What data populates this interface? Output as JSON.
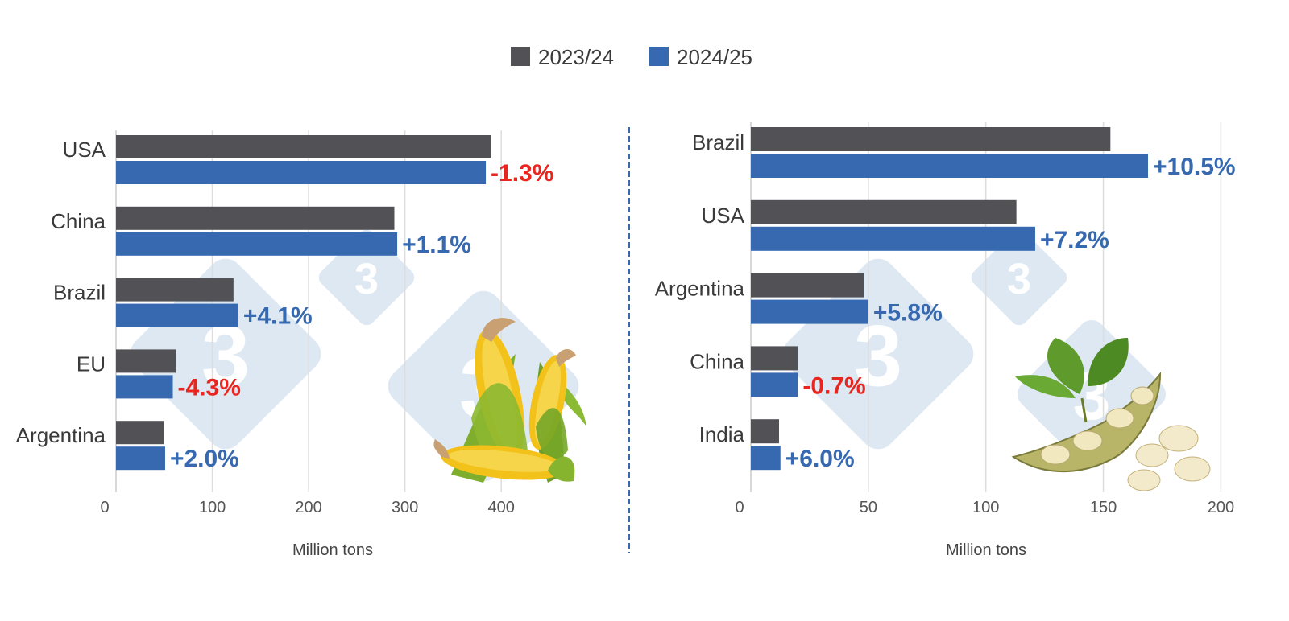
{
  "legend": {
    "items": [
      {
        "label": "2023/24",
        "color": "#525256"
      },
      {
        "label": "2024/25",
        "color": "#3669b0"
      }
    ]
  },
  "colors": {
    "series_2023_24": "#525256",
    "series_2024_25": "#3669b0",
    "positive_change": "#3669b0",
    "negative_change": "#e8261f",
    "gridline": "#dddddd",
    "divider": "#3669b0",
    "watermark": "#dde8f2"
  },
  "decorations": {
    "left_illustration": "corn-cobs-illustration",
    "right_illustration": "soybean-pods-illustration",
    "watermark_text": "3"
  },
  "chart_data": [
    {
      "type": "bar",
      "orientation": "horizontal",
      "categories": [
        "USA",
        "China",
        "Brazil",
        "EU",
        "Argentina"
      ],
      "series": [
        {
          "name": "2023/24",
          "values": [
            389,
            289,
            122,
            62,
            50
          ]
        },
        {
          "name": "2024/25",
          "values": [
            384,
            292,
            127,
            59,
            51
          ]
        }
      ],
      "change_labels": [
        "-1.3%",
        "+1.1%",
        "+4.1%",
        "-4.3%",
        "+2.0%"
      ],
      "xlabel": "Million tons",
      "xlim": [
        0,
        440
      ],
      "xticks": [
        0,
        100,
        200,
        300,
        400
      ],
      "grid": true
    },
    {
      "type": "bar",
      "orientation": "horizontal",
      "categories": [
        "Brazil",
        "USA",
        "Argentina",
        "China",
        "India"
      ],
      "series": [
        {
          "name": "2023/24",
          "values": [
            153,
            113,
            48,
            20,
            12
          ]
        },
        {
          "name": "2024/25",
          "values": [
            169,
            121,
            50,
            20,
            12.6
          ]
        }
      ],
      "change_labels": [
        "+10.5%",
        "+7.2%",
        "+5.8%",
        "-0.7%",
        "+6.0%"
      ],
      "xlabel": "Million tons",
      "xlim": [
        0,
        205
      ],
      "xticks": [
        0,
        50,
        100,
        150,
        200
      ],
      "grid": true
    }
  ]
}
